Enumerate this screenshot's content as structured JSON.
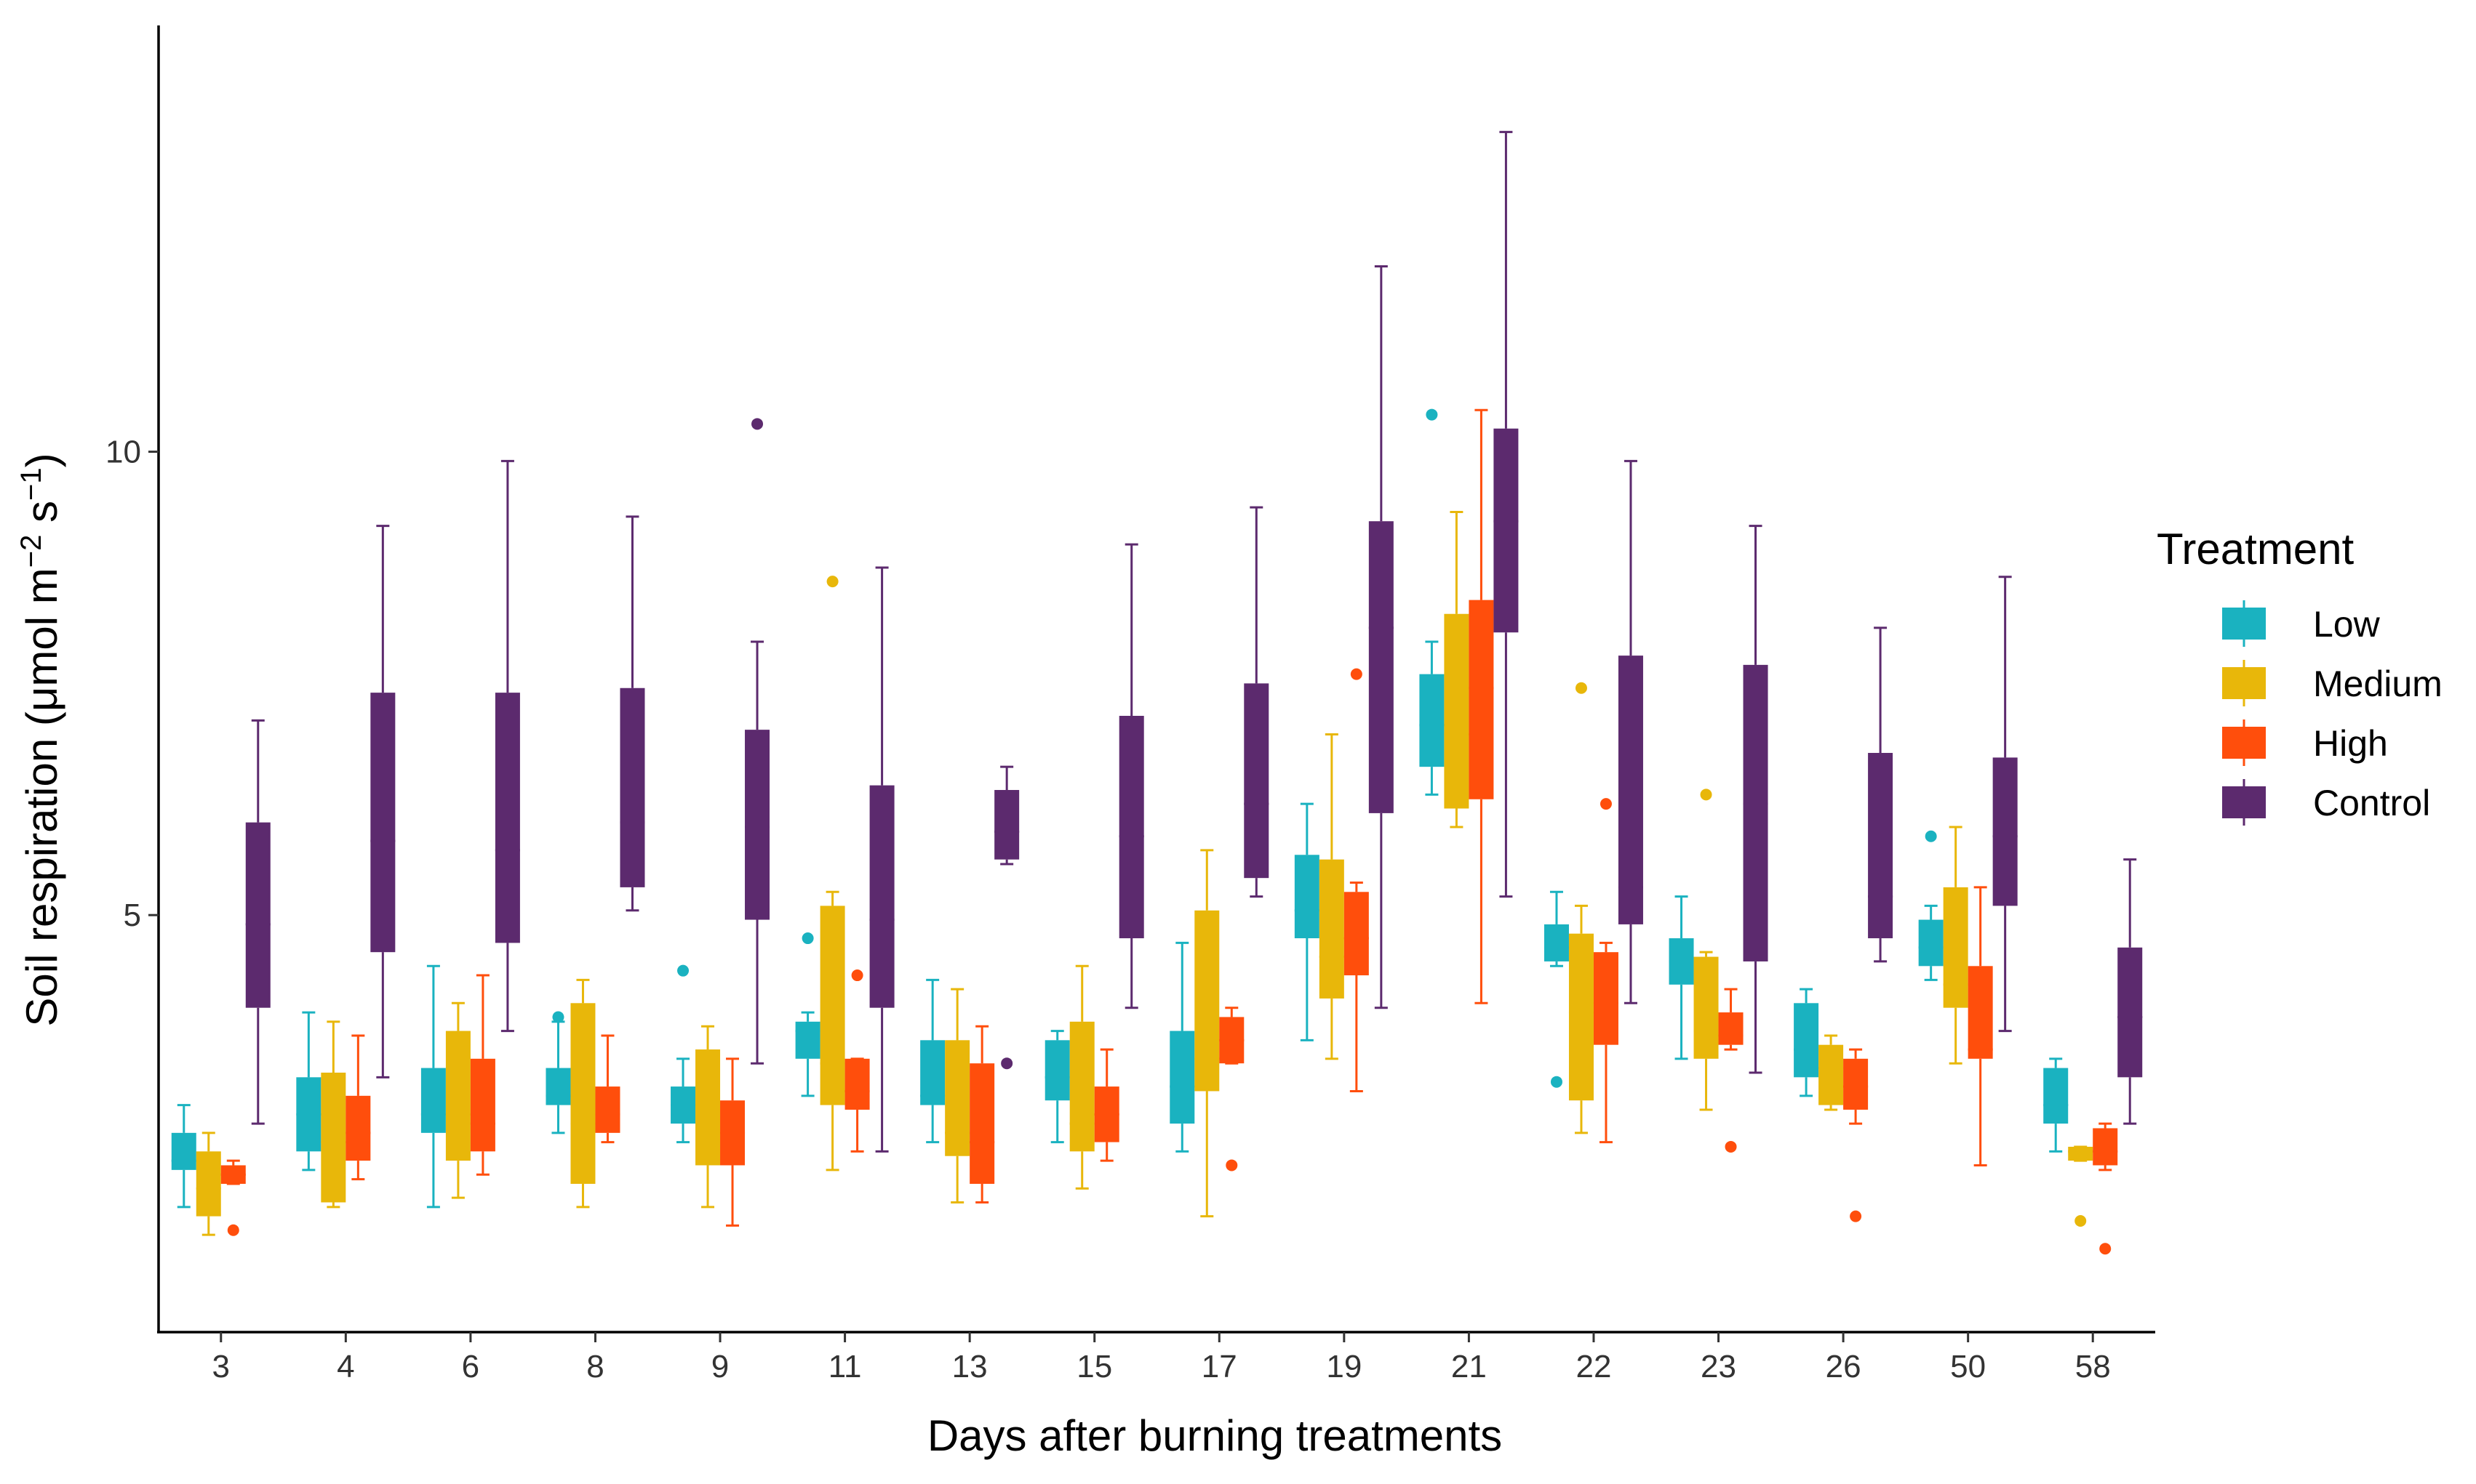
{
  "chart_data": {
    "type": "boxplot",
    "title": "",
    "xlabel": "Days after burning treatments",
    "ylabel": "Soil respiration (μmol m⁻² s⁻¹)",
    "ylabel_parts": {
      "base": "Soil respiration (μmol m",
      "sup1": "−2",
      "mid": " s",
      "sup2": "−1",
      "end": ")"
    },
    "ylim": [
      0.5,
      14.6
    ],
    "yticks": [
      5,
      10
    ],
    "categories": [
      "3",
      "4",
      "6",
      "8",
      "9",
      "11",
      "13",
      "15",
      "17",
      "19",
      "21",
      "22",
      "23",
      "26",
      "50",
      "58"
    ],
    "legend": {
      "title": "Treatment",
      "position": "right"
    },
    "series": [
      {
        "name": "Low",
        "color": "#1AB2C0",
        "boxes": [
          {
            "min": 1.85,
            "q1": 2.25,
            "median": 2.35,
            "q3": 2.65,
            "max": 2.95,
            "outliers": []
          },
          {
            "min": 2.25,
            "q1": 2.45,
            "median": 2.85,
            "q3": 3.25,
            "max": 3.95,
            "outliers": []
          },
          {
            "min": 1.85,
            "q1": 2.65,
            "median": 2.85,
            "q3": 3.35,
            "max": 4.45,
            "outliers": []
          },
          {
            "min": 2.65,
            "q1": 2.95,
            "median": 3.05,
            "q3": 3.35,
            "max": 3.85,
            "outliers": [
              3.9
            ]
          },
          {
            "min": 2.55,
            "q1": 2.75,
            "median": 2.95,
            "q3": 3.15,
            "max": 3.45,
            "outliers": [
              4.4
            ]
          },
          {
            "min": 3.05,
            "q1": 3.45,
            "median": 3.75,
            "q3": 3.85,
            "max": 3.95,
            "outliers": [
              4.75
            ]
          },
          {
            "min": 2.55,
            "q1": 2.95,
            "median": 3.05,
            "q3": 3.65,
            "max": 4.3,
            "outliers": []
          },
          {
            "min": 2.55,
            "q1": 3.0,
            "median": 3.25,
            "q3": 3.65,
            "max": 3.75,
            "outliers": []
          },
          {
            "min": 2.45,
            "q1": 2.75,
            "median": 3.15,
            "q3": 3.75,
            "max": 4.7,
            "outliers": []
          },
          {
            "min": 3.65,
            "q1": 4.75,
            "median": 5.05,
            "q3": 5.65,
            "max": 6.2,
            "outliers": []
          },
          {
            "min": 6.3,
            "q1": 6.6,
            "median": 7.05,
            "q3": 7.6,
            "max": 7.95,
            "outliers": [
              10.4
            ]
          },
          {
            "min": 4.45,
            "q1": 4.5,
            "median": 4.65,
            "q3": 4.9,
            "max": 5.25,
            "outliers": [
              3.2
            ]
          },
          {
            "min": 3.45,
            "q1": 4.25,
            "median": 4.5,
            "q3": 4.75,
            "max": 5.2,
            "outliers": []
          },
          {
            "min": 3.05,
            "q1": 3.25,
            "median": 3.55,
            "q3": 4.05,
            "max": 4.2,
            "outliers": []
          },
          {
            "min": 4.3,
            "q1": 4.45,
            "median": 4.65,
            "q3": 4.95,
            "max": 5.1,
            "outliers": [
              5.85
            ]
          },
          {
            "min": 2.45,
            "q1": 2.75,
            "median": 2.95,
            "q3": 3.35,
            "max": 3.45,
            "outliers": []
          }
        ]
      },
      {
        "name": "Medium",
        "color": "#E8B70A",
        "boxes": [
          {
            "min": 1.55,
            "q1": 1.75,
            "median": 2.05,
            "q3": 2.45,
            "max": 2.65,
            "outliers": []
          },
          {
            "min": 1.85,
            "q1": 1.9,
            "median": 2.55,
            "q3": 3.3,
            "max": 3.85,
            "outliers": []
          },
          {
            "min": 1.95,
            "q1": 2.35,
            "median": 2.85,
            "q3": 3.75,
            "max": 4.05,
            "outliers": []
          },
          {
            "min": 1.85,
            "q1": 2.1,
            "median": 2.75,
            "q3": 4.05,
            "max": 4.3,
            "outliers": []
          },
          {
            "min": 1.85,
            "q1": 2.3,
            "median": 2.95,
            "q3": 3.55,
            "max": 3.8,
            "outliers": []
          },
          {
            "min": 2.25,
            "q1": 2.95,
            "median": 3.4,
            "q3": 5.1,
            "max": 5.25,
            "outliers": [
              8.6
            ]
          },
          {
            "min": 1.9,
            "q1": 2.4,
            "median": 2.65,
            "q3": 3.65,
            "max": 4.2,
            "outliers": []
          },
          {
            "min": 2.05,
            "q1": 2.45,
            "median": 2.75,
            "q3": 3.85,
            "max": 4.45,
            "outliers": []
          },
          {
            "min": 1.75,
            "q1": 3.1,
            "median": 3.45,
            "q3": 5.05,
            "max": 5.7,
            "outliers": []
          },
          {
            "min": 3.45,
            "q1": 4.1,
            "median": 4.55,
            "q3": 5.6,
            "max": 6.95,
            "outliers": []
          },
          {
            "min": 5.95,
            "q1": 6.15,
            "median": 6.95,
            "q3": 8.25,
            "max": 9.35,
            "outliers": []
          },
          {
            "min": 2.65,
            "q1": 3.0,
            "median": 3.95,
            "q3": 4.8,
            "max": 5.1,
            "outliers": [
              7.45
            ]
          },
          {
            "min": 2.9,
            "q1": 3.45,
            "median": 3.75,
            "q3": 4.55,
            "max": 4.6,
            "outliers": [
              6.3
            ]
          },
          {
            "min": 2.9,
            "q1": 2.95,
            "median": 3.35,
            "q3": 3.6,
            "max": 3.7,
            "outliers": []
          },
          {
            "min": 3.4,
            "q1": 4.0,
            "median": 4.25,
            "q3": 5.3,
            "max": 5.95,
            "outliers": []
          },
          {
            "min": 2.35,
            "q1": 2.35,
            "median": 2.45,
            "q3": 2.5,
            "max": 2.5,
            "outliers": [
              1.7
            ]
          }
        ]
      },
      {
        "name": "High",
        "color": "#FF4E0C",
        "boxes": [
          {
            "min": 2.1,
            "q1": 2.1,
            "median": 2.2,
            "q3": 2.3,
            "max": 2.35,
            "outliers": [
              1.6
            ]
          },
          {
            "min": 2.15,
            "q1": 2.35,
            "median": 2.65,
            "q3": 3.05,
            "max": 3.7,
            "outliers": []
          },
          {
            "min": 2.2,
            "q1": 2.45,
            "median": 2.75,
            "q3": 3.45,
            "max": 4.35,
            "outliers": []
          },
          {
            "min": 2.55,
            "q1": 2.65,
            "median": 2.85,
            "q3": 3.15,
            "max": 3.7,
            "outliers": []
          },
          {
            "min": 1.65,
            "q1": 2.3,
            "median": 2.65,
            "q3": 3.0,
            "max": 3.45,
            "outliers": []
          },
          {
            "min": 2.45,
            "q1": 2.9,
            "median": 3.1,
            "q3": 3.45,
            "max": 3.45,
            "outliers": [
              4.35
            ]
          },
          {
            "min": 1.9,
            "q1": 2.1,
            "median": 2.55,
            "q3": 3.4,
            "max": 3.8,
            "outliers": []
          },
          {
            "min": 2.35,
            "q1": 2.55,
            "median": 2.85,
            "q3": 3.15,
            "max": 3.55,
            "outliers": []
          },
          {
            "min": 3.4,
            "q1": 3.4,
            "median": 3.65,
            "q3": 3.9,
            "max": 4.0,
            "outliers": [
              2.3
            ]
          },
          {
            "min": 3.1,
            "q1": 4.35,
            "median": 4.75,
            "q3": 5.25,
            "max": 5.35,
            "outliers": [
              7.6
            ]
          },
          {
            "min": 4.05,
            "q1": 6.25,
            "median": 7.45,
            "q3": 8.4,
            "max": 10.45,
            "outliers": []
          },
          {
            "min": 2.55,
            "q1": 3.6,
            "median": 4.05,
            "q3": 4.6,
            "max": 4.7,
            "outliers": [
              6.2
            ]
          },
          {
            "min": 3.55,
            "q1": 3.6,
            "median": 3.7,
            "q3": 3.95,
            "max": 4.2,
            "outliers": [
              2.5
            ]
          },
          {
            "min": 2.75,
            "q1": 2.9,
            "median": 3.15,
            "q3": 3.45,
            "max": 3.55,
            "outliers": [
              1.75
            ]
          },
          {
            "min": 2.3,
            "q1": 3.45,
            "median": 3.55,
            "q3": 4.45,
            "max": 5.3,
            "outliers": []
          },
          {
            "min": 2.25,
            "q1": 2.3,
            "median": 2.45,
            "q3": 2.7,
            "max": 2.75,
            "outliers": [
              1.4
            ]
          }
        ]
      },
      {
        "name": "Control",
        "color": "#5C2A6E",
        "boxes": [
          {
            "min": 2.75,
            "q1": 4.0,
            "median": 4.9,
            "q3": 6.0,
            "max": 7.1,
            "outliers": []
          },
          {
            "min": 3.25,
            "q1": 4.6,
            "median": 5.8,
            "q3": 7.4,
            "max": 9.2,
            "outliers": []
          },
          {
            "min": 3.75,
            "q1": 4.7,
            "median": 5.7,
            "q3": 7.4,
            "max": 9.9,
            "outliers": []
          },
          {
            "min": 5.05,
            "q1": 5.3,
            "median": 6.0,
            "q3": 7.45,
            "max": 9.3,
            "outliers": []
          },
          {
            "min": 3.4,
            "q1": 4.95,
            "median": 5.95,
            "q3": 7.0,
            "max": 7.95,
            "outliers": [
              10.3
            ]
          },
          {
            "min": 2.45,
            "q1": 4.0,
            "median": 4.95,
            "q3": 6.4,
            "max": 8.75,
            "outliers": []
          },
          {
            "min": 5.55,
            "q1": 5.6,
            "median": 5.9,
            "q3": 6.35,
            "max": 6.6,
            "outliers": [
              3.4
            ]
          },
          {
            "min": 4.0,
            "q1": 4.75,
            "median": 5.85,
            "q3": 7.15,
            "max": 9.0,
            "outliers": []
          },
          {
            "min": 5.2,
            "q1": 5.4,
            "median": 6.2,
            "q3": 7.5,
            "max": 9.4,
            "outliers": []
          },
          {
            "min": 4.0,
            "q1": 6.1,
            "median": 8.1,
            "q3": 9.25,
            "max": 12.0,
            "outliers": []
          },
          {
            "min": 5.2,
            "q1": 8.05,
            "median": 9.25,
            "q3": 10.25,
            "max": 13.45,
            "outliers": []
          },
          {
            "min": 4.05,
            "q1": 4.9,
            "median": 5.3,
            "q3": 7.8,
            "max": 9.9,
            "outliers": []
          },
          {
            "min": 3.3,
            "q1": 4.5,
            "median": 6.2,
            "q3": 7.7,
            "max": 9.2,
            "outliers": []
          },
          {
            "min": 4.5,
            "q1": 4.75,
            "median": 5.2,
            "q3": 6.75,
            "max": 8.1,
            "outliers": []
          },
          {
            "min": 3.75,
            "q1": 5.1,
            "median": 5.85,
            "q3": 6.7,
            "max": 8.65,
            "outliers": []
          },
          {
            "min": 2.75,
            "q1": 3.25,
            "median": 3.9,
            "q3": 4.65,
            "max": 5.6,
            "outliers": []
          }
        ]
      }
    ]
  }
}
